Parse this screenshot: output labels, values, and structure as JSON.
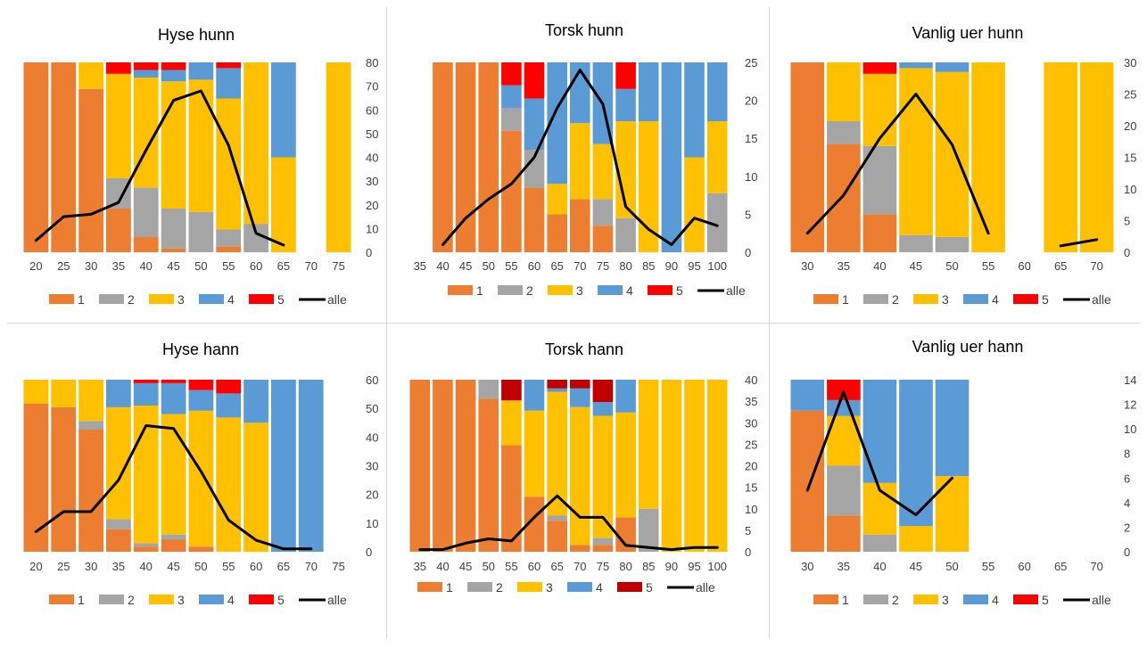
{
  "colors": {
    "1": "#ED7D31",
    "2": "#A5A5A5",
    "3": "#FFC000",
    "4": "#5B9BD5",
    "5": "#FF0000",
    "5dark": "#C00000",
    "alle": "#000000"
  },
  "chart_data": [
    {
      "type": "bar",
      "stacked": "100%",
      "title": "Hyse hunn",
      "categories": [
        "20",
        "25",
        "30",
        "35",
        "40",
        "45",
        "50",
        "55",
        "60",
        "65",
        "70",
        "75"
      ],
      "series": [
        {
          "name": "1",
          "values": [
            100,
            100,
            86,
            23,
            8,
            2,
            0,
            3,
            0,
            0,
            0,
            0
          ]
        },
        {
          "name": "2",
          "values": [
            0,
            0,
            0,
            16,
            26,
            21,
            21,
            9,
            15,
            0,
            0,
            0
          ]
        },
        {
          "name": "3",
          "values": [
            0,
            0,
            14,
            55,
            58,
            67,
            69,
            69,
            85,
            50,
            0,
            100
          ]
        },
        {
          "name": "4",
          "values": [
            0,
            0,
            0,
            0,
            4,
            6,
            9,
            16,
            0,
            50,
            0,
            0
          ]
        },
        {
          "name": "5",
          "values": [
            0,
            0,
            0,
            6,
            4,
            4,
            0,
            3,
            0,
            0,
            0,
            0
          ]
        }
      ],
      "line": {
        "name": "alle",
        "values": [
          5,
          15,
          16,
          21,
          43,
          64,
          68,
          45,
          8,
          3,
          null,
          null
        ]
      },
      "y2lim": [
        0,
        80
      ],
      "y2ticks": [
        "0",
        "10",
        "20",
        "30",
        "40",
        "50",
        "60",
        "70",
        "80"
      ],
      "legend": [
        "1",
        "2",
        "3",
        "4",
        "5",
        "alle"
      ]
    },
    {
      "type": "bar",
      "stacked": "100%",
      "title": "Torsk hunn",
      "categories": [
        "35",
        "40",
        "45",
        "50",
        "55",
        "60",
        "65",
        "70",
        "75",
        "80",
        "85",
        "90",
        "95",
        "100"
      ],
      "series": [
        {
          "name": "1",
          "values": [
            0,
            100,
            100,
            100,
            64,
            34,
            20,
            28,
            14,
            0,
            0,
            0,
            0,
            0
          ]
        },
        {
          "name": "2",
          "values": [
            0,
            0,
            0,
            0,
            12,
            20,
            0,
            0,
            14,
            18,
            0,
            0,
            0,
            31
          ]
        },
        {
          "name": "3",
          "values": [
            0,
            0,
            0,
            0,
            0,
            0,
            16,
            40,
            29,
            51,
            69,
            0,
            50,
            38
          ]
        },
        {
          "name": "4",
          "values": [
            0,
            0,
            0,
            0,
            12,
            27,
            64,
            32,
            43,
            17,
            31,
            100,
            50,
            31
          ]
        },
        {
          "name": "5",
          "values": [
            0,
            0,
            0,
            0,
            12,
            19,
            0,
            0,
            0,
            14,
            0,
            0,
            0,
            0
          ]
        }
      ],
      "line": {
        "name": "alle",
        "values": [
          null,
          1,
          4.5,
          7,
          9,
          12.5,
          19,
          24,
          19.5,
          6,
          3,
          1,
          4.5,
          3.5
        ]
      },
      "y2lim": [
        0,
        25
      ],
      "y2ticks": [
        "0",
        "5",
        "10",
        "15",
        "20",
        "25"
      ],
      "legend": [
        "1",
        "2",
        "3",
        "4",
        "5",
        "alle"
      ]
    },
    {
      "type": "bar",
      "stacked": "100%",
      "title": "Vanlig uer hunn",
      "categories": [
        "30",
        "35",
        "40",
        "45",
        "50",
        "55",
        "60",
        "65",
        "70"
      ],
      "series": [
        {
          "name": "1",
          "values": [
            100,
            57,
            20,
            0,
            0,
            0,
            0,
            0,
            0
          ]
        },
        {
          "name": "2",
          "values": [
            0,
            12,
            36,
            9,
            8,
            0,
            0,
            0,
            0
          ]
        },
        {
          "name": "3",
          "values": [
            0,
            31,
            38,
            88,
            87,
            100,
            0,
            100,
            100
          ]
        },
        {
          "name": "4",
          "values": [
            0,
            0,
            0,
            3,
            5,
            0,
            0,
            0,
            0
          ]
        },
        {
          "name": "5",
          "values": [
            0,
            0,
            6,
            0,
            0,
            0,
            0,
            0,
            0
          ]
        }
      ],
      "line": {
        "name": "alle",
        "values": [
          3,
          9,
          18,
          25,
          17,
          3,
          null,
          1,
          2
        ]
      },
      "y2lim": [
        0,
        30
      ],
      "y2ticks": [
        "0",
        "5",
        "10",
        "15",
        "20",
        "25",
        "30"
      ],
      "legend": [
        "1",
        "2",
        "3",
        "4",
        "5",
        "alle"
      ]
    },
    {
      "type": "bar",
      "stacked": "100%",
      "title": "Hyse hann",
      "categories": [
        "20",
        "25",
        "30",
        "35",
        "40",
        "45",
        "50",
        "55",
        "60",
        "65",
        "70",
        "75"
      ],
      "series": [
        {
          "name": "1",
          "values": [
            86,
            84,
            71,
            13,
            3,
            7,
            3,
            0,
            0,
            0,
            0,
            0
          ]
        },
        {
          "name": "2",
          "values": [
            0,
            0,
            5,
            6,
            2,
            3,
            0,
            0,
            0,
            0,
            0,
            0
          ]
        },
        {
          "name": "3",
          "values": [
            14,
            16,
            24,
            65,
            80,
            70,
            79,
            78,
            75,
            0,
            0,
            0
          ]
        },
        {
          "name": "4",
          "values": [
            0,
            0,
            0,
            16,
            13,
            18,
            12,
            14,
            25,
            100,
            100,
            0
          ]
        },
        {
          "name": "5",
          "values": [
            0,
            0,
            0,
            0,
            2,
            2,
            6,
            8,
            0,
            0,
            0,
            0
          ]
        }
      ],
      "line": {
        "name": "alle",
        "values": [
          7,
          14,
          14,
          25,
          44,
          43,
          28,
          11,
          4,
          1,
          1,
          null
        ]
      },
      "y2lim": [
        0,
        60
      ],
      "y2ticks": [
        "0",
        "10",
        "20",
        "30",
        "40",
        "50",
        "60"
      ],
      "legend": [
        "1",
        "2",
        "3",
        "4",
        "5",
        "alle"
      ]
    },
    {
      "type": "bar",
      "stacked": "100%",
      "title": "Torsk hann",
      "categories": [
        "35",
        "40",
        "45",
        "50",
        "55",
        "60",
        "65",
        "70",
        "75",
        "80",
        "85",
        "90",
        "95",
        "100"
      ],
      "series": [
        {
          "name": "1",
          "values": [
            100,
            100,
            100,
            89,
            62,
            32,
            18,
            4,
            4,
            20,
            0,
            0,
            0,
            0
          ]
        },
        {
          "name": "2",
          "values": [
            0,
            0,
            0,
            11,
            0,
            0,
            3,
            0,
            4,
            0,
            25,
            0,
            0,
            0
          ]
        },
        {
          "name": "3",
          "values": [
            0,
            0,
            0,
            0,
            26,
            50,
            72,
            80,
            71,
            61,
            75,
            100,
            100,
            100
          ]
        },
        {
          "name": "4",
          "values": [
            0,
            0,
            0,
            0,
            0,
            18,
            2,
            11,
            8,
            19,
            0,
            0,
            0,
            0
          ]
        },
        {
          "name": "5",
          "values": [
            0,
            0,
            0,
            0,
            12,
            0,
            5,
            5,
            13,
            0,
            0,
            0,
            0,
            0
          ]
        }
      ],
      "line": {
        "name": "alle",
        "values": [
          0.5,
          0.5,
          2,
          3,
          2.5,
          8,
          13,
          8,
          8,
          1.5,
          1,
          0.5,
          1,
          1
        ]
      },
      "y2lim": [
        0,
        40
      ],
      "y2ticks": [
        "0",
        "5",
        "10",
        "15",
        "20",
        "25",
        "30",
        "35",
        "40"
      ],
      "legend": [
        "1",
        "2",
        "3",
        "4",
        "5",
        "alle"
      ]
    },
    {
      "type": "bar",
      "stacked": "100%",
      "title": "Vanlig uer hann",
      "categories": [
        "30",
        "35",
        "40",
        "45",
        "50",
        "55",
        "60",
        "65",
        "70"
      ],
      "series": [
        {
          "name": "1",
          "values": [
            82,
            16,
            0,
            0,
            0,
            0,
            0,
            0,
            0
          ]
        },
        {
          "name": "2",
          "values": [
            0,
            22,
            10,
            0,
            0,
            0,
            0,
            0,
            0
          ]
        },
        {
          "name": "3",
          "values": [
            0,
            22,
            30,
            15,
            44,
            0,
            0,
            0,
            0
          ]
        },
        {
          "name": "4",
          "values": [
            18,
            7,
            60,
            85,
            56,
            0,
            0,
            0,
            0
          ]
        },
        {
          "name": "5",
          "values": [
            0,
            9,
            0,
            0,
            0,
            0,
            0,
            0,
            0
          ]
        }
      ],
      "line": {
        "name": "alle",
        "values": [
          5,
          13,
          5,
          3,
          6,
          null,
          null,
          null,
          null
        ]
      },
      "y2lim": [
        0,
        14
      ],
      "y2ticks": [
        "0",
        "2",
        "4",
        "6",
        "8",
        "10",
        "12",
        "14"
      ],
      "legend": [
        "1",
        "2",
        "3",
        "4",
        "5",
        "alle"
      ]
    }
  ]
}
